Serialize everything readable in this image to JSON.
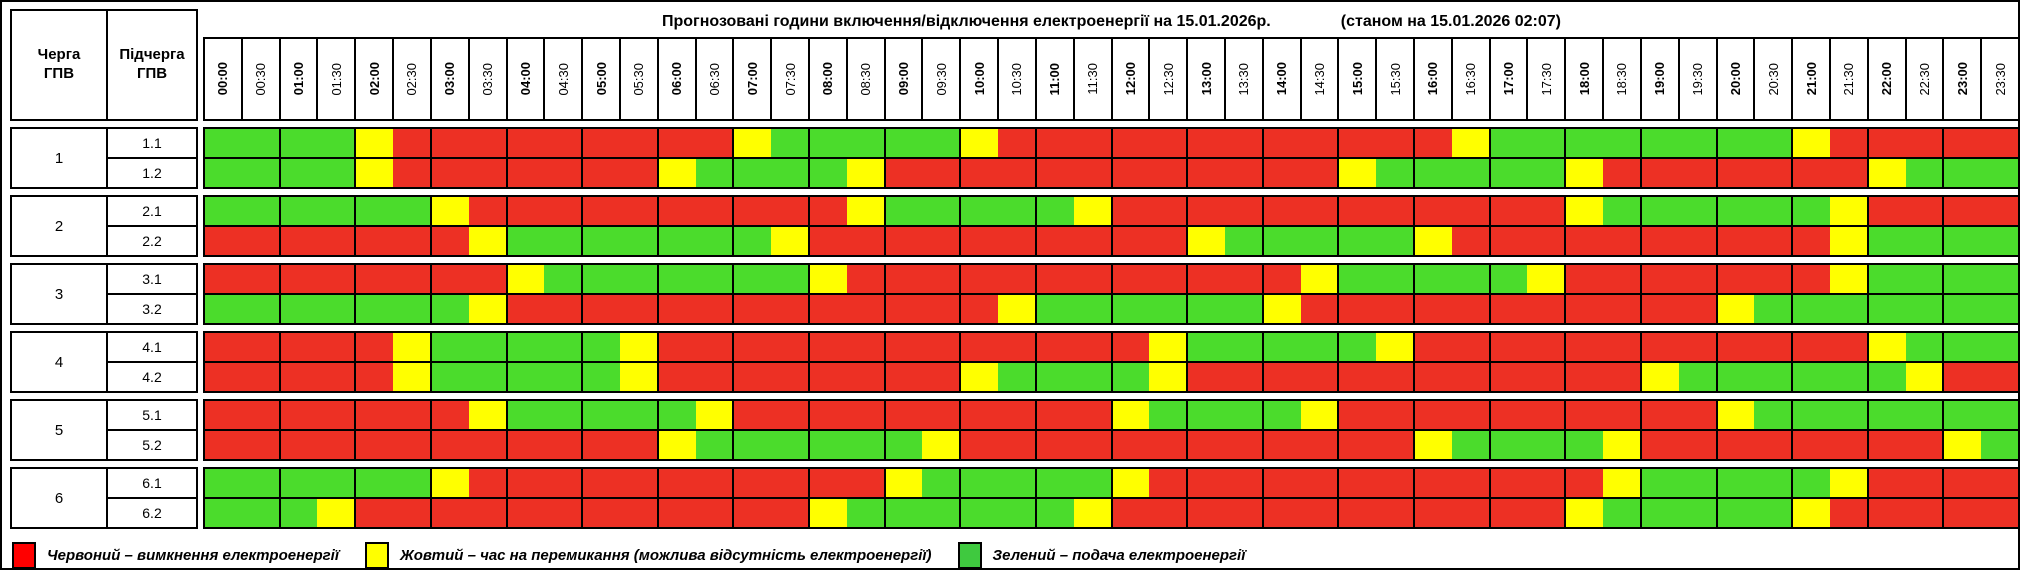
{
  "title": {
    "main": "Прогнозовані години включення/відключення електроенергії на 15.01.2026р.",
    "note": "(станом на 15.01.2026 02:07)"
  },
  "headers": {
    "queue_col": "Черга\nГПВ",
    "subqueue_col": "Підчерга\nГПВ"
  },
  "times": [
    "00:00",
    "00:30",
    "01:00",
    "01:30",
    "02:00",
    "02:30",
    "03:00",
    "03:30",
    "04:00",
    "04:30",
    "05:00",
    "05:30",
    "06:00",
    "06:30",
    "07:00",
    "07:30",
    "08:00",
    "08:30",
    "09:00",
    "09:30",
    "10:00",
    "10:30",
    "11:00",
    "11:30",
    "12:00",
    "12:30",
    "13:00",
    "13:30",
    "14:00",
    "14:30",
    "15:00",
    "15:30",
    "16:00",
    "16:30",
    "17:00",
    "17:30",
    "18:00",
    "18:30",
    "19:00",
    "19:30",
    "20:00",
    "20:30",
    "21:00",
    "21:30",
    "22:00",
    "22:30",
    "23:00",
    "23:30"
  ],
  "colors": {
    "R": "#ED3024",
    "Y": "#FFFF00",
    "G": "#4BDC2C"
  },
  "queues": [
    {
      "queue": "1",
      "subqueues": [
        {
          "label": "1.1",
          "slots": "GGGGYRRRRRRRRRYGGGGGYRRRRRRRRRRRRYGGGGGGGGYRRRRR"
        },
        {
          "label": "1.2",
          "slots": "GGGGYRRRRRRRYGGGGYRRRRRRRRRRRRYGGGGGYRRRRRRRYGGG"
        }
      ]
    },
    {
      "queue": "2",
      "subqueues": [
        {
          "label": "2.1",
          "slots": "GGGGGGYRRRRRRRRRRYGGGGGYRRRRRRRRRRRRYGGGGGGYRRRR"
        },
        {
          "label": "2.2",
          "slots": "RRRRRRRYGGGGGGGYRRRRRRRRRRYGGGGGYRRRRRRRRRRYGGGG"
        }
      ]
    },
    {
      "queue": "3",
      "subqueues": [
        {
          "label": "3.1",
          "slots": "RRRRRRRRYGGGGGGGYRRRRRRRRRRRRYGGGGGYRRRRRRRYGGGG"
        },
        {
          "label": "3.2",
          "slots": "GGGGGGGYRRRRRRRRRRRRRYGGGGGGYRRRRRRRRRRRYGGGGGGG"
        }
      ]
    },
    {
      "queue": "4",
      "subqueues": [
        {
          "label": "4.1",
          "slots": "RRRRRYGGGGGYRRRRRRRRRRRRRYGGGGGYRRRRRRRRRRRRYGGG"
        },
        {
          "label": "4.2",
          "slots": "RRRRRYGGGGGYRRRRRRRRYGGGGYRRRRRRRRRRRRYGGGGGGYRR"
        }
      ]
    },
    {
      "queue": "5",
      "subqueues": [
        {
          "label": "5.1",
          "slots": "RRRRRRRYGGGGGYRRRRRRRRRRYGGGGYRRRRRRRRRRYGGGGGGG"
        },
        {
          "label": "5.2",
          "slots": "RRRRRRRRRRRRYGGGGGGYRRRRRRRRRRRRYGGGGYRRRRRRRRYG"
        }
      ]
    },
    {
      "queue": "6",
      "subqueues": [
        {
          "label": "6.1",
          "slots": "GGGGGGYRRRRRRRRRRRYGGGGGYRRRRRRRRRRRRYGGGGGYRRRR"
        },
        {
          "label": "6.2",
          "slots": "GGGYRRRRRRRRRRRRYGGGGGGYRRRRRRRRRRRRYGGGGGYRRRRR"
        }
      ]
    }
  ],
  "legend": [
    {
      "color": "#FF0000",
      "text": "Червоний – вимкнення електроенергії"
    },
    {
      "color": "#FFFF00",
      "text": "Жовтий – час на перемикання (можлива відсутність електроенергії)"
    },
    {
      "color": "#3FC93F",
      "text": "Зелений – подача електроенергії"
    }
  ]
}
